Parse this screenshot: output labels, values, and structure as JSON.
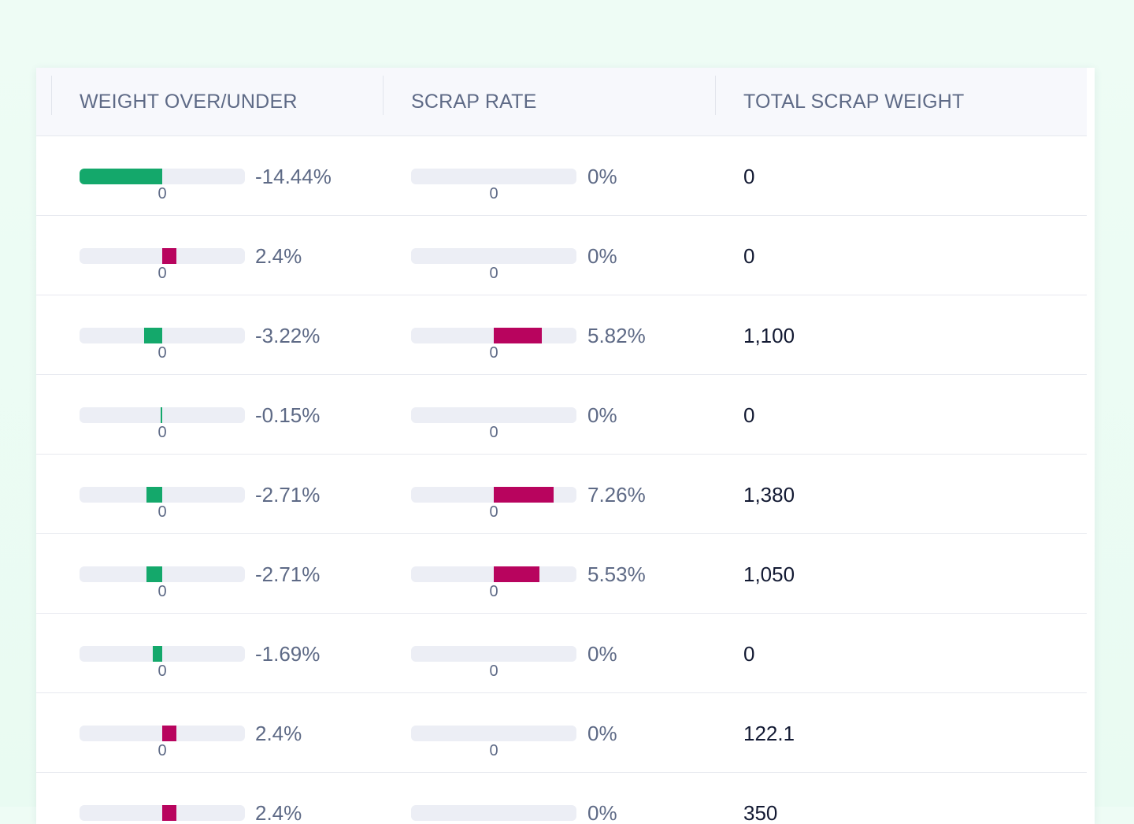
{
  "table": {
    "columns": [
      {
        "label": "WEIGHT OVER/UNDER"
      },
      {
        "label": "SCRAP RATE"
      },
      {
        "label": "TOTAL SCRAP WEIGHT"
      }
    ],
    "axis_zero_label": "0",
    "colors": {
      "under": "#14a86b",
      "over": "#b8045e",
      "track": "#eceef5"
    },
    "weight_scale_max_percent": 28.8,
    "scrap_scale_max_percent": 20,
    "rows": [
      {
        "weight": -14.44,
        "weight_label": "-14.44%",
        "scrap": 0,
        "scrap_label": "0%",
        "total": "0"
      },
      {
        "weight": 2.4,
        "weight_label": "2.4%",
        "scrap": 0,
        "scrap_label": "0%",
        "total": "0"
      },
      {
        "weight": -3.22,
        "weight_label": "-3.22%",
        "scrap": 5.82,
        "scrap_label": "5.82%",
        "total": "1,100"
      },
      {
        "weight": -0.15,
        "weight_label": "-0.15%",
        "scrap": 0,
        "scrap_label": "0%",
        "total": "0"
      },
      {
        "weight": -2.71,
        "weight_label": "-2.71%",
        "scrap": 7.26,
        "scrap_label": "7.26%",
        "total": "1,380"
      },
      {
        "weight": -2.71,
        "weight_label": "-2.71%",
        "scrap": 5.53,
        "scrap_label": "5.53%",
        "total": "1,050"
      },
      {
        "weight": -1.69,
        "weight_label": "-1.69%",
        "scrap": 0,
        "scrap_label": "0%",
        "total": "0"
      },
      {
        "weight": 2.4,
        "weight_label": "2.4%",
        "scrap": 0,
        "scrap_label": "0%",
        "total": "122.1"
      },
      {
        "weight": 2.4,
        "weight_label": "2.4%",
        "scrap": 0,
        "scrap_label": "0%",
        "total": "350"
      }
    ]
  }
}
